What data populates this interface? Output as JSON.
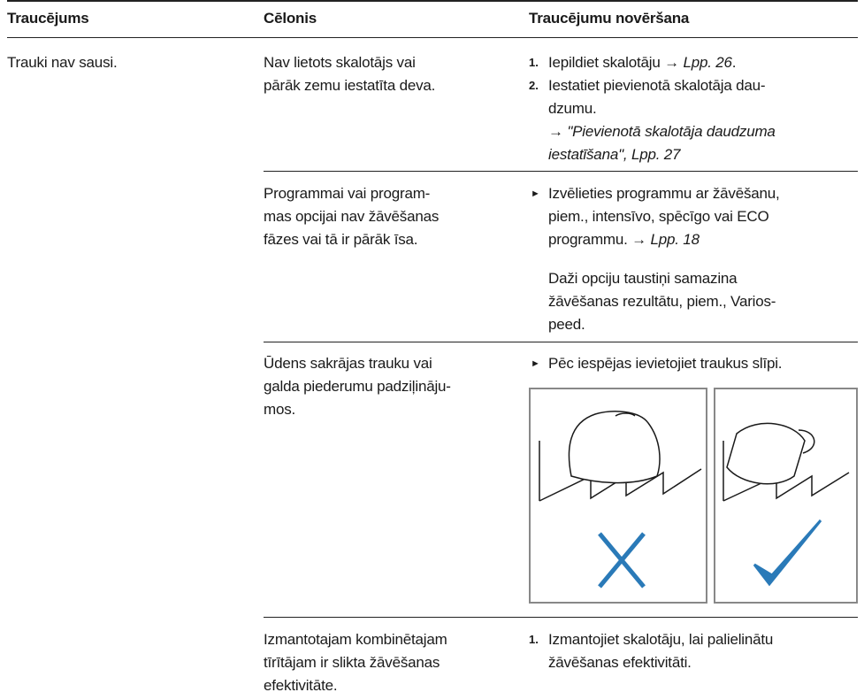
{
  "header": [
    "Traucējums",
    "Cēlonis",
    "Traucējumu novēršana"
  ],
  "fault": "Trauki nav sausi.",
  "causes": [
    {
      "cause": [
        "Nav lietots skalotājs vai",
        "pārāk zemu iestatīta deva."
      ],
      "steps": [
        {
          "number": "1.",
          "text": "Iepildiet skalotāju →",
          "ref": "Lpp. 26",
          "end": "."
        },
        {
          "number": "2.",
          "lines": [
            "Iestatiet pievienotā skalotāja dau-",
            "dzumu.",
            "→ \"Pievienotā skalotāja daudzuma",
            "iestatīšana\", Lpp. 27"
          ]
        }
      ]
    },
    {
      "cause": [
        "Programmai vai program-",
        "mas opcijai nav žāvēšanas",
        "fāzes vai tā ir pārāk īsa."
      ],
      "steps": [
        {
          "lines": [
            "Izvēlieties programmu ar žāvēšanu,",
            "piem., intensīvo, spēcīgo vai ECO",
            "programmu. →"
          ],
          "ref": "Lpp. 18"
        }
      ],
      "note": [
        "Daži opciju taustiņi samazina",
        "žāvēšanas rezultātu, piem., Varios-",
        "peed."
      ]
    },
    {
      "cause": [
        "Ūdens sakrājas trauku vai",
        "galda piederumu padziļināju-",
        "mos."
      ],
      "steps": [
        {
          "lines": [
            "Pēc iespējas ievietojiet traukus slīpi."
          ]
        }
      ]
    },
    {
      "cause": [
        "Izmantotajam kombinētajam",
        "tīrītājam ir slikta žāvēšanas",
        "efektivitāte."
      ],
      "steps": [
        {
          "number": "1.",
          "lines": [
            "Izmantojiet skalotāju, lai palielinātu",
            "žāvēšanas efektivitāti."
          ]
        }
      ]
    }
  ]
}
